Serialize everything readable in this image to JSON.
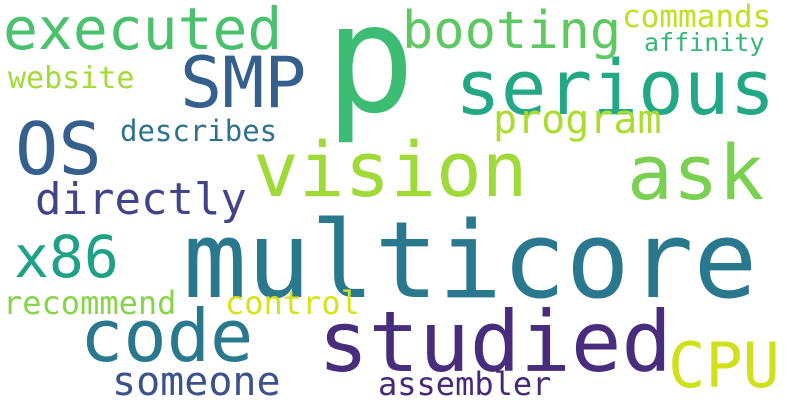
{
  "words": [
    {
      "text": "p",
      "color": "#3dbc74"
    },
    {
      "text": "multicore",
      "color": "#2a788e"
    },
    {
      "text": "studied",
      "color": "#472d7b"
    },
    {
      "text": "serious",
      "color": "#22a884"
    },
    {
      "text": "vision",
      "color": "#a0da39"
    },
    {
      "text": "ask",
      "color": "#7ad151"
    },
    {
      "text": "code",
      "color": "#2a788e"
    },
    {
      "text": "SMP",
      "color": "#355f8d"
    },
    {
      "text": "executed",
      "color": "#4ac16d"
    },
    {
      "text": "booting",
      "color": "#5ec962"
    },
    {
      "text": "OS",
      "color": "#355f8d"
    },
    {
      "text": "CPU",
      "color": "#d0e11c"
    },
    {
      "text": "x86",
      "color": "#1fa187"
    },
    {
      "text": "directly",
      "color": "#414487"
    },
    {
      "text": "program",
      "color": "#addc30"
    },
    {
      "text": "someone",
      "color": "#3b528b"
    },
    {
      "text": "assembler",
      "color": "#482878"
    },
    {
      "text": "recommend",
      "color": "#86d549"
    },
    {
      "text": "control",
      "color": "#d8e219"
    },
    {
      "text": "commands",
      "color": "#c2df23"
    },
    {
      "text": "describes",
      "color": "#2c728e"
    },
    {
      "text": "website",
      "color": "#a2da37"
    },
    {
      "text": "affinity",
      "color": "#35b779"
    }
  ]
}
